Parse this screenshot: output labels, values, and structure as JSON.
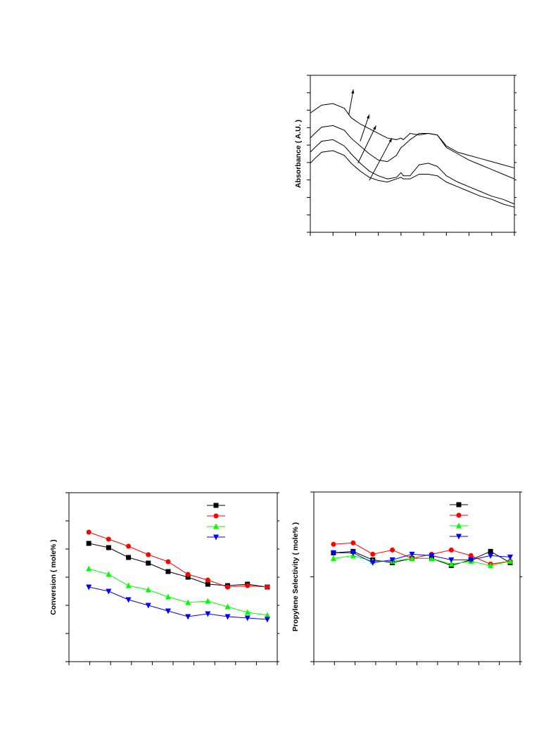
{
  "chart_data": [
    {
      "type": "line",
      "title": "",
      "xlabel": "",
      "ylabel": "Absorbance ( A.U. )",
      "xlim": [
        0,
        9
      ],
      "ylim": [
        0,
        10
      ],
      "x_ticks": 9,
      "y_ticks": 9,
      "legend": "none",
      "series": [
        {
          "x": [
            0,
            0.2,
            0.5,
            1.0,
            1.5,
            1.8,
            2.2,
            2.6,
            3.0,
            3.4,
            3.8,
            4.0,
            4.1,
            4.4,
            4.8,
            5.2,
            5.6,
            6.0,
            6.5,
            7.0,
            7.5,
            8.0,
            8.5,
            9.0
          ],
          "y": [
            7.6,
            7.8,
            8.1,
            8.2,
            7.9,
            7.3,
            6.9,
            6.6,
            6.3,
            6.0,
            5.9,
            6.0,
            5.9,
            6.3,
            6.2,
            6.3,
            6.2,
            5.5,
            5.1,
            4.9,
            4.7,
            4.5,
            4.3,
            4.1
          ]
        },
        {
          "x": [
            0,
            0.2,
            0.5,
            1.0,
            1.5,
            1.8,
            2.2,
            2.6,
            3.0,
            3.4,
            3.8,
            4.0,
            4.1,
            4.4,
            4.8,
            5.2,
            5.6,
            6.0,
            6.5,
            7.0,
            7.5,
            8.0,
            8.5,
            9.0
          ],
          "y": [
            6.0,
            6.3,
            6.7,
            6.8,
            6.5,
            6.0,
            5.5,
            5.0,
            4.6,
            4.5,
            4.9,
            5.4,
            5.5,
            5.9,
            6.3,
            6.3,
            6.2,
            5.4,
            5.0,
            4.6,
            4.3,
            4.0,
            3.7,
            3.4
          ]
        },
        {
          "x": [
            0,
            0.2,
            0.5,
            1.0,
            1.5,
            1.8,
            2.2,
            2.6,
            3.0,
            3.4,
            3.8,
            4.0,
            4.1,
            4.4,
            4.8,
            5.2,
            5.6,
            6.0,
            6.5,
            7.0,
            7.5,
            8.0,
            8.5,
            9.0
          ],
          "y": [
            5.1,
            5.4,
            5.8,
            5.9,
            5.5,
            5.0,
            4.4,
            3.9,
            3.6,
            3.4,
            3.5,
            3.8,
            3.6,
            3.6,
            4.3,
            4.4,
            4.2,
            3.6,
            3.2,
            2.9,
            2.6,
            2.3,
            2.1,
            1.8
          ]
        },
        {
          "x": [
            0,
            0.2,
            0.5,
            1.0,
            1.5,
            1.8,
            2.2,
            2.6,
            3.0,
            3.4,
            3.8,
            4.0,
            4.1,
            4.4,
            4.8,
            5.2,
            5.6,
            6.0,
            6.5,
            7.0,
            7.5,
            8.0,
            8.5,
            9.0
          ],
          "y": [
            4.4,
            4.7,
            5.1,
            5.2,
            4.9,
            4.4,
            3.9,
            3.5,
            3.3,
            3.2,
            3.4,
            3.5,
            3.4,
            3.4,
            3.7,
            3.7,
            3.6,
            3.2,
            2.9,
            2.6,
            2.3,
            2.1,
            1.8,
            1.6
          ]
        }
      ],
      "annotations": [
        {
          "type": "arrow",
          "from": [
            1.7,
            7.5
          ],
          "to": [
            1.9,
            9.1
          ]
        },
        {
          "type": "arrow",
          "from": [
            2.2,
            5.8
          ],
          "to": [
            2.6,
            7.5
          ]
        },
        {
          "type": "arrow",
          "from": [
            2.1,
            4.4
          ],
          "to": [
            2.9,
            6.8
          ]
        },
        {
          "type": "arrow",
          "from": [
            2.6,
            3.3
          ],
          "to": [
            3.6,
            6.0
          ]
        }
      ]
    },
    {
      "type": "line",
      "title": "",
      "xlabel": "",
      "ylabel": "Conversion ( mole% )",
      "xlim": [
        0,
        10.5
      ],
      "ylim": [
        0,
        12
      ],
      "x_ticks": 10,
      "y_ticks": 6,
      "legend": "top-right",
      "series": [
        {
          "color": "#000000",
          "marker": "square",
          "x": [
            1,
            2,
            3,
            4,
            5,
            6,
            7,
            8,
            9,
            10
          ],
          "y": [
            8.4,
            8.1,
            7.4,
            7.0,
            6.4,
            6.0,
            5.5,
            5.4,
            5.5,
            5.3
          ]
        },
        {
          "color": "#ff0000",
          "marker": "circle",
          "x": [
            1,
            2,
            3,
            4,
            5,
            6,
            7,
            8,
            9,
            10
          ],
          "y": [
            9.2,
            8.7,
            8.2,
            7.6,
            7.1,
            6.2,
            5.8,
            5.3,
            5.4,
            5.3
          ]
        },
        {
          "color": "#00ff00",
          "marker": "triangle-up",
          "x": [
            1,
            2,
            3,
            4,
            5,
            6,
            7,
            8,
            9,
            10
          ],
          "y": [
            6.6,
            6.2,
            5.4,
            5.1,
            4.6,
            4.2,
            4.3,
            3.9,
            3.5,
            3.3
          ]
        },
        {
          "color": "#0000ff",
          "marker": "triangle-down",
          "x": [
            1,
            2,
            3,
            4,
            5,
            6,
            7,
            8,
            9,
            10
          ],
          "y": [
            5.3,
            5.0,
            4.4,
            4.0,
            3.6,
            3.2,
            3.4,
            3.2,
            3.1,
            3.0
          ]
        }
      ]
    },
    {
      "type": "line",
      "title": "",
      "xlabel": "",
      "ylabel": "Propylene Selectivity ( mole% )",
      "xlim": [
        0,
        10.5
      ],
      "ylim": [
        0,
        12
      ],
      "x_ticks": 10,
      "y_ticks": 2,
      "legend": "top-right",
      "series": [
        {
          "color": "#000000",
          "marker": "square",
          "x": [
            1,
            2,
            3,
            4,
            5,
            6,
            7,
            8,
            9,
            10
          ],
          "y": [
            7.7,
            7.8,
            7.2,
            7.0,
            7.3,
            7.3,
            6.8,
            7.2,
            7.8,
            7.0
          ]
        },
        {
          "color": "#ff0000",
          "marker": "circle",
          "x": [
            1,
            2,
            3,
            4,
            5,
            6,
            7,
            8,
            9,
            10
          ],
          "y": [
            8.3,
            8.4,
            7.6,
            7.9,
            7.3,
            7.6,
            7.9,
            7.5,
            6.9,
            7.1
          ]
        },
        {
          "color": "#00ff00",
          "marker": "triangle-up",
          "x": [
            1,
            2,
            3,
            4,
            5,
            6,
            7,
            8,
            9,
            10
          ],
          "y": [
            7.3,
            7.5,
            7.1,
            7.1,
            7.3,
            7.3,
            6.9,
            7.1,
            6.8,
            7.1
          ]
        },
        {
          "color": "#0000ff",
          "marker": "triangle-down",
          "x": [
            1,
            2,
            3,
            4,
            5,
            6,
            7,
            8,
            9,
            10
          ],
          "y": [
            7.7,
            7.7,
            7.0,
            7.2,
            7.6,
            7.5,
            7.2,
            7.2,
            7.5,
            7.4
          ]
        }
      ]
    }
  ]
}
